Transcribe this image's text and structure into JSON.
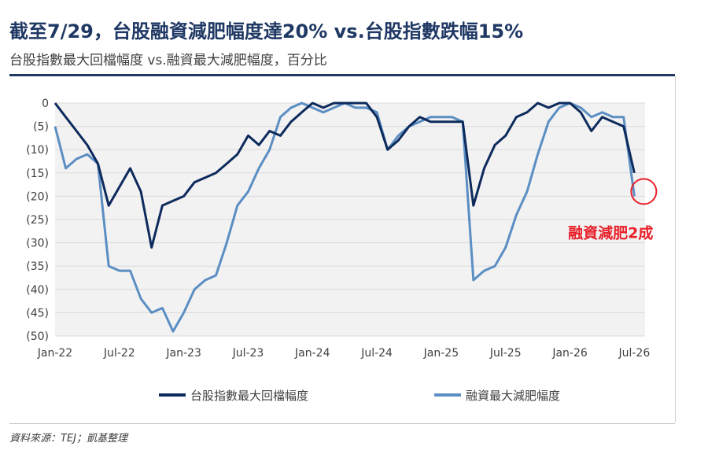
{
  "title": "截至7/29，台股融資減肥幅度達20% vs.台股指數跌幅15%",
  "subtitle": "台股指數最大回檔幅度 vs.融資最大減肥幅度，百分比",
  "source": "資料來源：TEJ；凱基整理",
  "colors": {
    "title": "#1f3864",
    "index_series": "#0d2a5c",
    "margin_series": "#5b8ec2",
    "annotation": "#e8202a",
    "grid": "#d9d9d9",
    "plot_bg": "#f2f2f2"
  },
  "chart_data": {
    "type": "line",
    "title": "",
    "xlabel": "",
    "ylabel": "",
    "x_tick_labels": [
      "Jan-22",
      "Jul-22",
      "Jan-23",
      "Jul-23",
      "Jan-24",
      "Jul-24",
      "Jan-25",
      "Jul-25",
      "Jan-26",
      "Jul-26"
    ],
    "y_tick_labels": [
      "0",
      "(5)",
      "(10)",
      "(15)",
      "(20)",
      "(25)",
      "(30)",
      "(35)",
      "(40)",
      "(45)",
      "(50)"
    ],
    "ylim": [
      -50,
      0
    ],
    "xlim": [
      "2022-01",
      "2026-08"
    ],
    "grid": "horizontal",
    "legend_position": "bottom",
    "annotation": {
      "text": "融資減肥2成",
      "x": "2026-07",
      "y": -20
    },
    "series": [
      {
        "name": "台股指數最大回檔幅度",
        "x": [
          "2022-01",
          "2022-02",
          "2022-03",
          "2022-04",
          "2022-05",
          "2022-06",
          "2022-07",
          "2022-08",
          "2022-09",
          "2022-10",
          "2022-11",
          "2022-12",
          "2023-01",
          "2023-02",
          "2023-03",
          "2023-04",
          "2023-05",
          "2023-06",
          "2023-07",
          "2023-08",
          "2023-09",
          "2023-10",
          "2023-11",
          "2023-12",
          "2024-01",
          "2024-02",
          "2024-03",
          "2024-04",
          "2024-05",
          "2024-06",
          "2024-07",
          "2024-08",
          "2024-09",
          "2024-10",
          "2024-11",
          "2024-12",
          "2025-01",
          "2025-02",
          "2025-03",
          "2025-04",
          "2025-05",
          "2025-06",
          "2025-07",
          "2025-08",
          "2025-09",
          "2025-10",
          "2025-11",
          "2025-12",
          "2026-01",
          "2026-02",
          "2026-03",
          "2026-04",
          "2026-05",
          "2026-06",
          "2026-07"
        ],
        "values": [
          0,
          -3,
          -6,
          -9,
          -13,
          -22,
          -18,
          -14,
          -19,
          -31,
          -22,
          -21,
          -20,
          -17,
          -16,
          -15,
          -13,
          -11,
          -7,
          -9,
          -6,
          -7,
          -4,
          -2,
          0,
          -1,
          0,
          0,
          0,
          0,
          -3,
          -10,
          -8,
          -5,
          -3,
          -4,
          -4,
          -4,
          -4,
          -22,
          -14,
          -9,
          -7,
          -3,
          -2,
          0,
          -1,
          0,
          0,
          -2,
          -6,
          -3,
          -4,
          -5,
          -15
        ]
      },
      {
        "name": "融資最大減肥幅度",
        "x": [
          "2022-01",
          "2022-02",
          "2022-03",
          "2022-04",
          "2022-05",
          "2022-06",
          "2022-07",
          "2022-08",
          "2022-09",
          "2022-10",
          "2022-11",
          "2022-12",
          "2023-01",
          "2023-02",
          "2023-03",
          "2023-04",
          "2023-05",
          "2023-06",
          "2023-07",
          "2023-08",
          "2023-09",
          "2023-10",
          "2023-11",
          "2023-12",
          "2024-01",
          "2024-02",
          "2024-03",
          "2024-04",
          "2024-05",
          "2024-06",
          "2024-07",
          "2024-08",
          "2024-09",
          "2024-10",
          "2024-11",
          "2024-12",
          "2025-01",
          "2025-02",
          "2025-03",
          "2025-04",
          "2025-05",
          "2025-06",
          "2025-07",
          "2025-08",
          "2025-09",
          "2025-10",
          "2025-11",
          "2025-12",
          "2026-01",
          "2026-02",
          "2026-03",
          "2026-04",
          "2026-05",
          "2026-06",
          "2026-07"
        ],
        "values": [
          -5,
          -14,
          -12,
          -11,
          -13,
          -35,
          -36,
          -36,
          -42,
          -45,
          -44,
          -49,
          -45,
          -40,
          -38,
          -37,
          -30,
          -22,
          -19,
          -14,
          -10,
          -3,
          -1,
          0,
          -1,
          -2,
          -1,
          0,
          -1,
          -1,
          -2,
          -10,
          -7,
          -5,
          -4,
          -3,
          -3,
          -3,
          -4,
          -38,
          -36,
          -35,
          -31,
          -24,
          -19,
          -11,
          -4,
          -1,
          0,
          -1,
          -3,
          -2,
          -3,
          -3,
          -20
        ]
      }
    ]
  }
}
